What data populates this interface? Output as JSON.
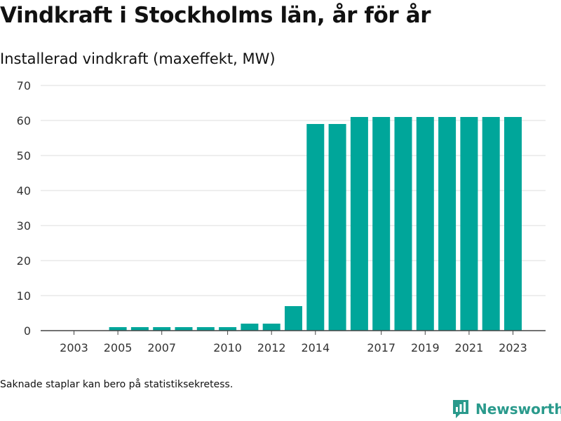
{
  "title": "Vindkraft i Stockholms län, år för år",
  "subtitle": "Installerad vindkraft (maxeffekt, MW)",
  "note": "Saknade staplar kan bero på statistiksekretess.",
  "brand": {
    "name": "Newsworthy",
    "icon": "newsworthy-logo-icon",
    "color": "#2a9a8c"
  },
  "colors": {
    "bar": "#00a69a",
    "grid": "#dddddd",
    "axis": "#444444"
  },
  "chart_data": {
    "type": "bar",
    "title": "",
    "xlabel": "",
    "ylabel": "",
    "ylim": [
      0,
      70
    ],
    "yticks": [
      0,
      10,
      20,
      30,
      40,
      50,
      60,
      70
    ],
    "grid": true,
    "categories": [
      "2003",
      "2004",
      "2005",
      "2006",
      "2007",
      "2008",
      "2009",
      "2010",
      "2011",
      "2012",
      "2013",
      "2014",
      "2015",
      "2016",
      "2017",
      "2018",
      "2019",
      "2020",
      "2021",
      "2022",
      "2023"
    ],
    "tick_labels": [
      "2003",
      "2005",
      "2007",
      "2010",
      "2012",
      "2014",
      "2017",
      "2019",
      "2021",
      "2023"
    ],
    "values": [
      0,
      0,
      1,
      1,
      1,
      1,
      1,
      1,
      2,
      2,
      7,
      59,
      59,
      61,
      61,
      61,
      61,
      61,
      61,
      61,
      61
    ]
  }
}
